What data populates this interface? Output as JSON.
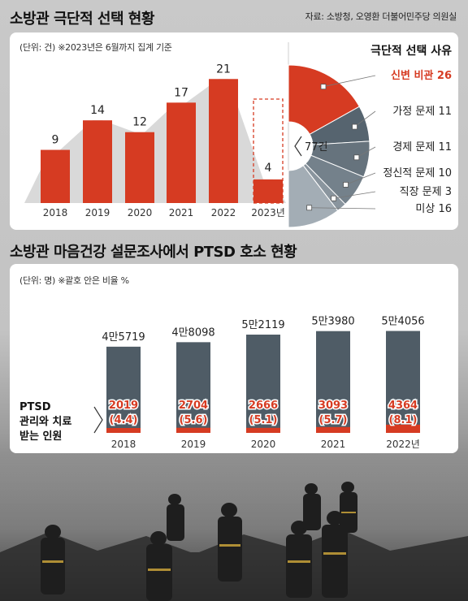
{
  "header": {
    "title1": "소방관 극단적 선택 현황",
    "source": "자료: 소방청, 오영환 더불어민주당 의원실",
    "title2": "소방관 마음건강 설문조사에서 PTSD 호소 현황"
  },
  "colors": {
    "red": "#d63b22",
    "gray_bg": "#d9d9d9",
    "dark_slate": "#4f5c66",
    "pie_shades": [
      "#d63b22",
      "#56646f",
      "#66737d",
      "#74818b",
      "#8a959e",
      "#a3adb5"
    ]
  },
  "chart_data": [
    {
      "type": "bar",
      "unit_note": "(단위: 건) ※2023년은 6월까지 집계 기준",
      "categories": [
        "2018",
        "2019",
        "2020",
        "2021",
        "2022",
        "2023년"
      ],
      "values": [
        9,
        14,
        12,
        17,
        21,
        4
      ],
      "value_labels": [
        "9",
        "14",
        "12",
        "17",
        "21",
        "4"
      ],
      "ylim": [
        0,
        22
      ]
    },
    {
      "type": "pie",
      "title": "극단적 선택 사유",
      "total_label": "77건",
      "slices": [
        {
          "label": "신변 비관 26",
          "value": 26
        },
        {
          "label": "가정 문제 11",
          "value": 11
        },
        {
          "label": "경제 문제 11",
          "value": 11
        },
        {
          "label": "정신적 문제 10",
          "value": 10
        },
        {
          "label": "직장 문제 3",
          "value": 3
        },
        {
          "label": "미상 16",
          "value": 16
        }
      ]
    },
    {
      "type": "bar",
      "unit_note": "(단위: 명) ※괄호 안은 비율 %",
      "categories": [
        "2018",
        "2019",
        "2020",
        "2021",
        "2022년"
      ],
      "series": [
        {
          "values": [
            45719,
            48098,
            52119,
            53980,
            54056
          ],
          "labels": [
            "4만5719",
            "4만8098",
            "5만2119",
            "5만3980",
            "5만4056"
          ]
        },
        {
          "name": "PTSD 관리와 치료 받는 인원",
          "values": [
            2019,
            2704,
            2666,
            3093,
            4364
          ],
          "labels": [
            "2019",
            "2704",
            "2666",
            "3093",
            "4364"
          ],
          "pct_labels": [
            "(4.4)",
            "(5.6)",
            "(5.1)",
            "(5.7)",
            "(8.1)"
          ]
        }
      ],
      "legend_lines": [
        "PTSD",
        "관리와 치료",
        "받는 인원"
      ],
      "ylim": [
        0,
        56000
      ]
    }
  ]
}
